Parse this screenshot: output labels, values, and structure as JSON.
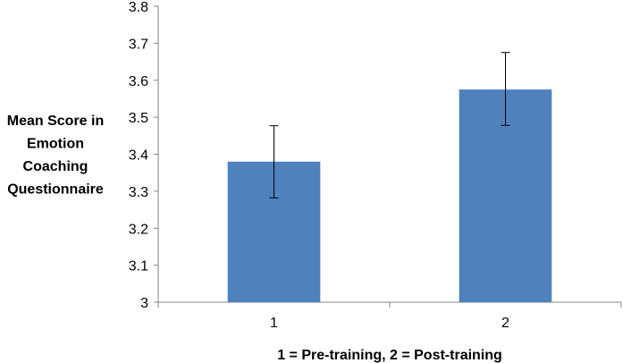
{
  "chart_data": {
    "type": "bar",
    "categories": [
      "1",
      "2"
    ],
    "values": [
      3.38,
      3.575
    ],
    "error_bars": [
      {
        "lower": 3.282,
        "upper": 3.477
      },
      {
        "lower": 3.478,
        "upper": 3.675
      }
    ],
    "ylim": [
      3,
      3.8
    ],
    "y_ticks": [
      "3",
      "3.1",
      "3.2",
      "3.3",
      "3.4",
      "3.5",
      "3.6",
      "3.7",
      "3.8"
    ],
    "ylabel_lines": [
      "Mean Score in",
      "Emotion",
      "Coaching",
      "Questionnaire"
    ],
    "xlabel": "1 = Pre-training,  2 = Post-training",
    "title": "",
    "grid": false,
    "legend": "none",
    "colors": {
      "bar": "#4F81BD",
      "axis": "#868686",
      "error_bar": "#000000"
    }
  }
}
